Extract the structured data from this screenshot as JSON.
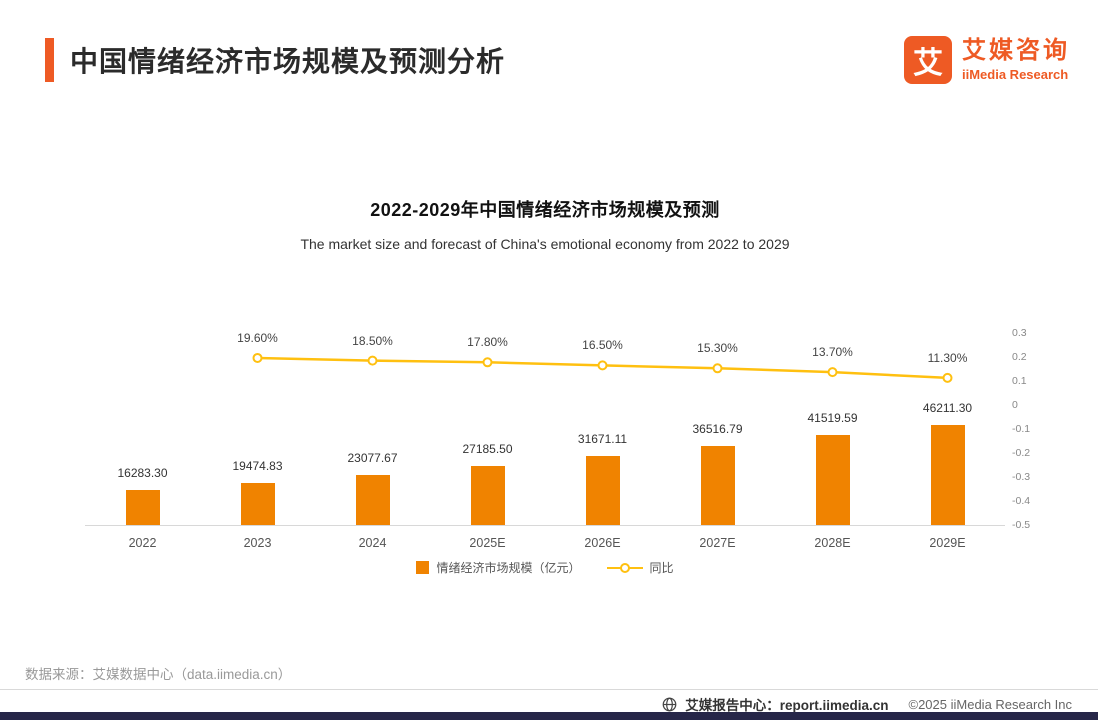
{
  "header": {
    "title": "中国情绪经济市场规模及预测分析",
    "logo": {
      "glyph": "艾",
      "brand_cn": "艾媒咨询",
      "brand_en": "iiMedia Research"
    }
  },
  "theme": {
    "accent": "#EE5A24",
    "bar_color": "#F08300",
    "line_color": "#FFC010",
    "dark_strip": "#262648"
  },
  "chart_data": {
    "type": "bar+line",
    "title": "2022-2029年中国情绪经济市场规模及预测",
    "subtitle": "The market size and forecast of China's emotional economy from 2022 to 2029",
    "categories": [
      "2022",
      "2023",
      "2024",
      "2025E",
      "2026E",
      "2027E",
      "2028E",
      "2029E"
    ],
    "series": [
      {
        "name": "情绪经济市场规模（亿元）",
        "type": "bar",
        "color": "#F08300",
        "values": [
          16283.3,
          19474.83,
          23077.67,
          27185.5,
          31671.11,
          36516.79,
          41519.59,
          46211.3
        ],
        "labels": [
          "16283.30",
          "19474.83",
          "23077.67",
          "27185.50",
          "31671.11",
          "36516.79",
          "41519.59",
          "46211.30"
        ]
      },
      {
        "name": "同比",
        "type": "line",
        "color": "#FFC010",
        "values": [
          null,
          0.196,
          0.185,
          0.178,
          0.165,
          0.153,
          0.137,
          0.113
        ],
        "labels": [
          "",
          "19.60%",
          "18.50%",
          "17.80%",
          "16.50%",
          "15.30%",
          "13.70%",
          "11.30%"
        ]
      }
    ],
    "right_axis": {
      "ticks": [
        "0.3",
        "0.2",
        "0.1",
        "0",
        "-0.1",
        "-0.2",
        "-0.3",
        "-0.4",
        "-0.5"
      ],
      "max": 0.3,
      "min": -0.5
    },
    "grid": "off",
    "legend_position": "bottom"
  },
  "footer": {
    "source": "数据来源：艾媒数据中心（data.iimedia.cn）",
    "report_center": "艾媒报告中心：report.iimedia.cn",
    "copyright": "©2025 iiMedia Research Inc"
  }
}
